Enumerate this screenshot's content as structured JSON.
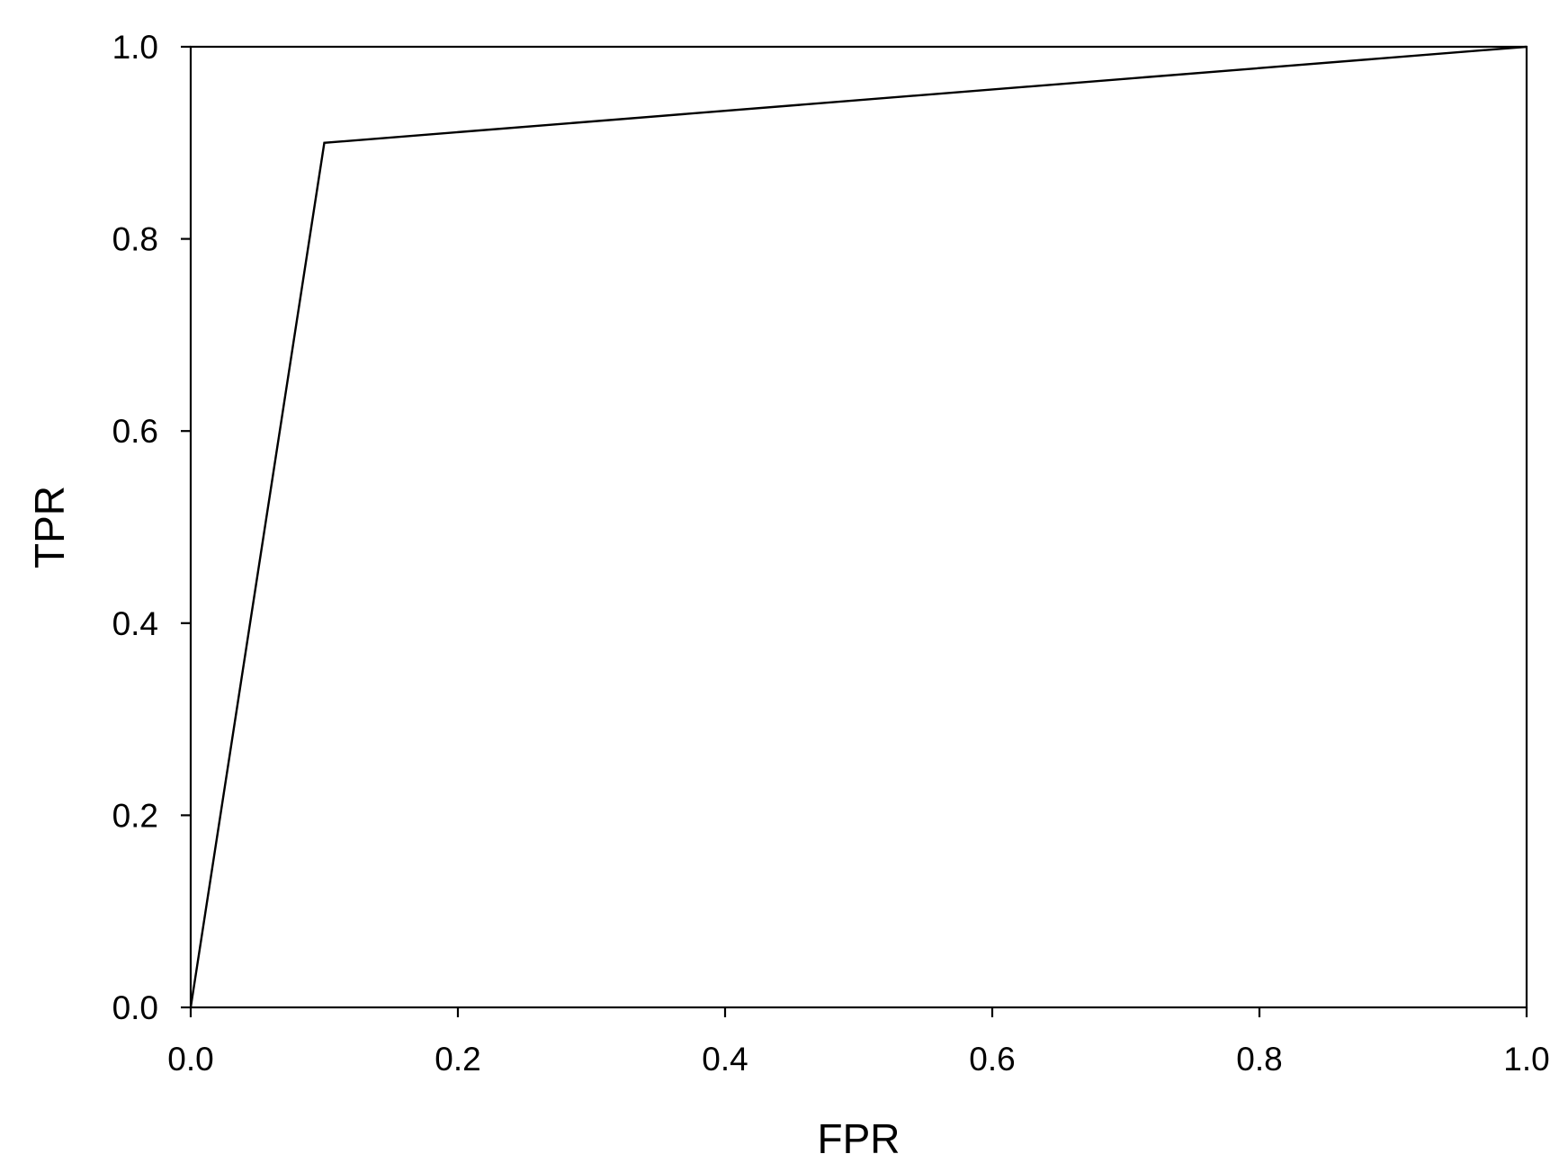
{
  "chart_data": {
    "type": "line",
    "title": "",
    "xlabel": "FPR",
    "ylabel": "TPR",
    "xlim": [
      0.0,
      1.0
    ],
    "ylim": [
      0.0,
      1.0
    ],
    "xticks": [
      "0.0",
      "0.2",
      "0.4",
      "0.6",
      "0.8",
      "1.0"
    ],
    "yticks": [
      "0.0",
      "0.2",
      "0.4",
      "0.6",
      "0.8",
      "1.0"
    ],
    "grid": false,
    "legend": "none",
    "series": [
      {
        "x": [
          0.0,
          0.1,
          1.0
        ],
        "y": [
          0.0,
          0.9,
          1.0
        ],
        "color": "#000000"
      }
    ]
  }
}
